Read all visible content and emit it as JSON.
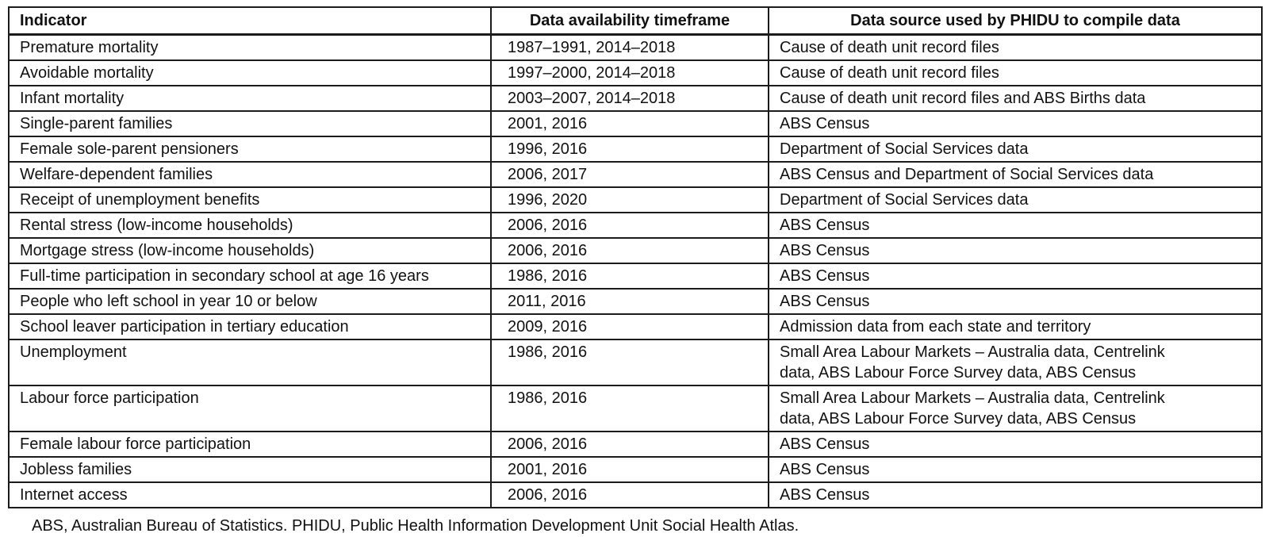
{
  "table": {
    "columns": [
      {
        "label": "Indicator"
      },
      {
        "label": "Data availability timeframe"
      },
      {
        "label": "Data source used by PHIDU to compile data"
      }
    ],
    "rows": [
      {
        "indicator": "Premature mortality",
        "timeframe": "1987–1991, 2014–2018",
        "source": "Cause of death unit record files"
      },
      {
        "indicator": "Avoidable mortality",
        "timeframe": "1997–2000, 2014–2018",
        "source": "Cause of death unit record files"
      },
      {
        "indicator": "Infant mortality",
        "timeframe": "2003–2007, 2014–2018",
        "source": "Cause of death unit record files and ABS Births data"
      },
      {
        "indicator": "Single-parent families",
        "timeframe": "2001, 2016",
        "source": "ABS Census"
      },
      {
        "indicator": "Female sole-parent pensioners",
        "timeframe": "1996, 2016",
        "source": "Department of Social Services data"
      },
      {
        "indicator": "Welfare-dependent families",
        "timeframe": "2006, 2017",
        "source": "ABS Census and Department of Social Services data"
      },
      {
        "indicator": "Receipt of unemployment benefits",
        "timeframe": "1996, 2020",
        "source": "Department of Social Services data"
      },
      {
        "indicator": "Rental stress (low-income households)",
        "timeframe": "2006, 2016",
        "source": "ABS Census"
      },
      {
        "indicator": "Mortgage stress (low-income households)",
        "timeframe": "2006, 2016",
        "source": "ABS Census"
      },
      {
        "indicator": "Full-time participation in secondary school at age 16 years",
        "timeframe": "1986, 2016",
        "source": "ABS Census"
      },
      {
        "indicator": "People who left school in year 10 or below",
        "timeframe": "2011, 2016",
        "source": "ABS Census"
      },
      {
        "indicator": "School leaver participation in tertiary education",
        "timeframe": "2009, 2016",
        "source": "Admission data from each state and territory"
      },
      {
        "indicator": "Unemployment",
        "timeframe": "1986, 2016",
        "source": "Small Area Labour Markets – Australia data, Centrelink\ndata, ABS Labour Force Survey data, ABS Census"
      },
      {
        "indicator": "Labour force participation",
        "timeframe": "1986, 2016",
        "source": "Small Area Labour Markets – Australia data, Centrelink\ndata, ABS Labour Force Survey data, ABS Census"
      },
      {
        "indicator": "Female labour force participation",
        "timeframe": "2006, 2016",
        "source": "ABS Census"
      },
      {
        "indicator": "Jobless families",
        "timeframe": "2001, 2016",
        "source": "ABS Census"
      },
      {
        "indicator": "Internet access",
        "timeframe": "2006, 2016",
        "source": "ABS Census"
      }
    ]
  },
  "footnote": "ABS, Australian Bureau of Statistics. PHIDU, Public Health Information Development Unit Social Health Atlas."
}
